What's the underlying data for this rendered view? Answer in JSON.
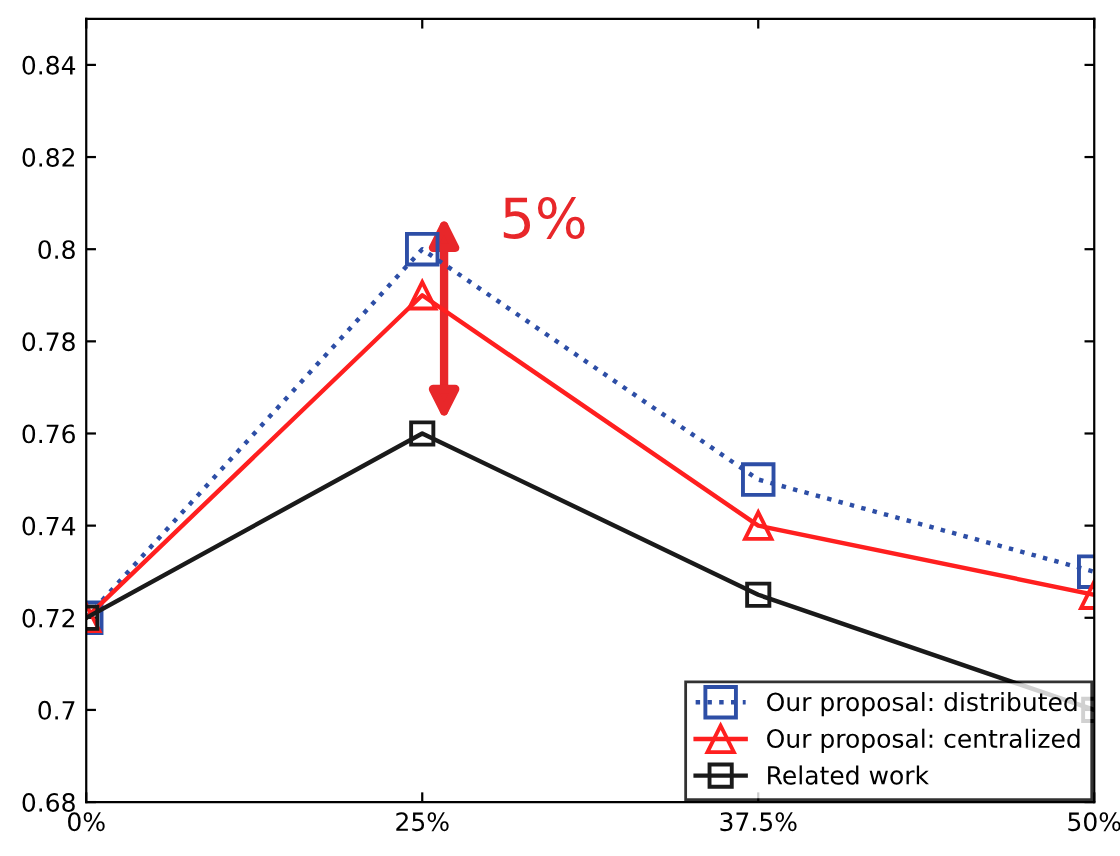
{
  "chart_data": {
    "type": "line",
    "categories": [
      "0%",
      "25%",
      "37.5%",
      "50%"
    ],
    "series": [
      {
        "name": "Our proposal: distributed",
        "color": "#2d4ea6",
        "values": [
          0.72,
          0.8,
          0.75,
          0.73
        ],
        "marker": "square",
        "line_style": "dotted"
      },
      {
        "name": "Our proposal: centralized",
        "color": "#ff1f1f",
        "values": [
          0.72,
          0.79,
          0.74,
          0.725
        ],
        "marker": "triangle",
        "line_style": "solid"
      },
      {
        "name": "Related work",
        "color": "#1a1a1a",
        "values": [
          0.72,
          0.76,
          0.725,
          0.7
        ],
        "marker": "square",
        "line_style": "solid"
      }
    ],
    "ylim": [
      0.68,
      0.85
    ],
    "yticks": [
      0.68,
      0.7,
      0.72,
      0.74,
      0.76,
      0.78,
      0.8,
      0.82,
      0.84
    ],
    "annotations": [
      "5%"
    ],
    "legend": "bottom right",
    "grid": false
  }
}
